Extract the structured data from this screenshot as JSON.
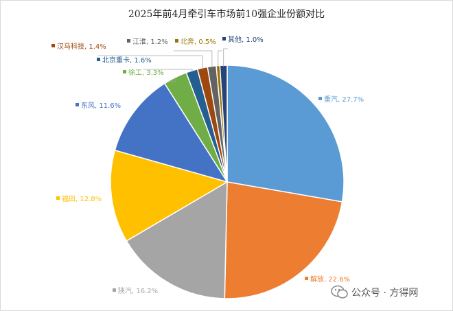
{
  "chart_data": {
    "type": "pie",
    "title": "2025年前4月牵引车市场前10强企业份额对比",
    "slices": [
      {
        "label": "重汽",
        "value": 27.7,
        "text": "重汽, 27.7%",
        "color": "#5b9bd5"
      },
      {
        "label": "解放",
        "value": 22.6,
        "text": "解放, 22.6%",
        "color": "#ed7d31"
      },
      {
        "label": "陕汽",
        "value": 16.2,
        "text": "陕汽, 16.2%",
        "color": "#a5a5a5"
      },
      {
        "label": "福田",
        "value": 12.8,
        "text": "福田, 12.8%",
        "color": "#ffc000"
      },
      {
        "label": "东风",
        "value": 11.6,
        "text": "东风, 11.6%",
        "color": "#4472c4"
      },
      {
        "label": "徐工",
        "value": 3.3,
        "text": "徐工, 3.3%",
        "color": "#70ad47"
      },
      {
        "label": "北京重卡",
        "value": 1.6,
        "text": "北京重卡, 1.6%",
        "color": "#255e91"
      },
      {
        "label": "汉马科技",
        "value": 1.4,
        "text": "汉马科技, 1.4%",
        "color": "#9e480e"
      },
      {
        "label": "江淮",
        "value": 1.2,
        "text": "江淮, 1.2%",
        "color": "#636363"
      },
      {
        "label": "北奔",
        "value": 0.5,
        "text": "北奔, 0.5%",
        "color": "#997300"
      },
      {
        "label": "其他",
        "value": 1.0,
        "text": "其他, 1.0%",
        "color": "#264478"
      }
    ]
  },
  "watermark": {
    "text": "公众号 · 方得网",
    "icon": "wechat-icon"
  }
}
